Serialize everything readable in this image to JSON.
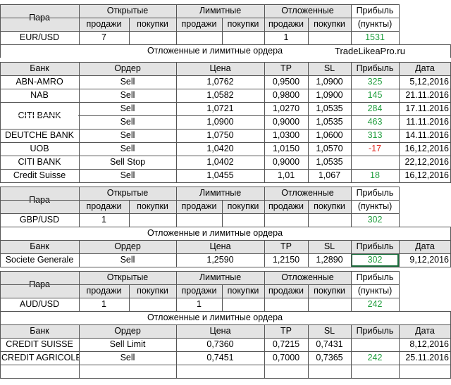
{
  "colors": {
    "profit_positive": "#1e9d3c",
    "profit_negative": "#e0231b",
    "header_bg": "#e3e3e3",
    "grid": "#555555"
  },
  "eur": {
    "hdr": {
      "pair": "Пара",
      "open": "Открытые",
      "limit": "Лимитные",
      "pending": "Отложенные",
      "profit": "Прибыль",
      "sell": "продажи",
      "buy": "покупки",
      "points": "(пункты)"
    },
    "row": {
      "pair": "EUR/USD",
      "open_sell": "7",
      "open_buy": "",
      "lim_sell": "",
      "lim_buy": "",
      "pend_sell": "1",
      "pend_buy": "",
      "profit": "1531"
    },
    "orders_title": "Отложенные и лимитные ордера",
    "site": "TradeLikeaPro.ru",
    "table_hdr": {
      "bank": "Банк",
      "order": "Ордер",
      "price": "Цена",
      "tp": "TP",
      "sl": "SL",
      "profit": "Прибыль",
      "date": "Дата"
    },
    "orders": [
      {
        "bank": "ABN-AMRO",
        "order": "Sell",
        "price": "1,0762",
        "tp": "0,9500",
        "sl": "1,0900",
        "profit": "325",
        "date": "5,12,2016"
      },
      {
        "bank": "NAB",
        "order": "Sell",
        "price": "1,0582",
        "tp": "0,9800",
        "sl": "1,0900",
        "profit": "145",
        "date": "21.11.2016"
      },
      {
        "bank": "",
        "order": "Sell",
        "price": "1,0721",
        "tp": "1,0270",
        "sl": "1,0535",
        "profit": "284",
        "date": "17.11.2016"
      },
      {
        "bank": "",
        "order": "Sell",
        "price": "1,0900",
        "tp": "0,9000",
        "sl": "1,0535",
        "profit": "463",
        "date": "11.11.2016"
      },
      {
        "bank": "DEUTCHE BANK",
        "order": "Sell",
        "price": "1,0750",
        "tp": "1,0300",
        "sl": "1,0600",
        "profit": "313",
        "date": "14.11.2016"
      },
      {
        "bank": "UOB",
        "order": "Sell",
        "price": "1,0420",
        "tp": "1,0150",
        "sl": "1,0570",
        "profit": "-17",
        "date": "16,12,2016"
      },
      {
        "bank": "CITI BANK",
        "order": "Sell Stop",
        "price": "1,0402",
        "tp": "0,9000",
        "sl": "1,0535",
        "profit": "",
        "date": "22,12,2016"
      },
      {
        "bank": "Credit Suisse",
        "order": "Sell",
        "price": "1,0455",
        "tp": "1,01",
        "sl": "1,067",
        "profit": "18",
        "date": "16,12,2016"
      }
    ],
    "merged_bank": "CITI BANK"
  },
  "gbp": {
    "row": {
      "pair": "GBP/USD",
      "open_sell": "1",
      "open_buy": "",
      "lim_sell": "",
      "lim_buy": "",
      "pend_sell": "",
      "pend_buy": "",
      "profit": "302"
    },
    "orders_title": "Отложенные и лимитные ордера",
    "orders": [
      {
        "bank": "Societe Generale",
        "order": "Sell",
        "price": "1,2590",
        "tp": "1,2150",
        "sl": "1,2890",
        "profit": "302",
        "date": "9,12,2016"
      }
    ]
  },
  "aud": {
    "row": {
      "pair": "AUD/USD",
      "open_sell": "1",
      "open_buy": "",
      "lim_sell": "1",
      "lim_buy": "",
      "pend_sell": "",
      "pend_buy": "",
      "profit": "242"
    },
    "orders_title": "Отложенные и лимитные ордера",
    "orders": [
      {
        "bank": "CREDIT SUISSE",
        "order": "Sell Limit",
        "price": "0,7360",
        "tp": "0,7215",
        "sl": "0,7431",
        "profit": "",
        "date": "8,12,2016"
      },
      {
        "bank": "CREDIT AGRICOLE",
        "order": "Sell",
        "price": "0,7451",
        "tp": "0,7000",
        "sl": "0,7365",
        "profit": "242",
        "date": "25.11.2016"
      }
    ]
  }
}
